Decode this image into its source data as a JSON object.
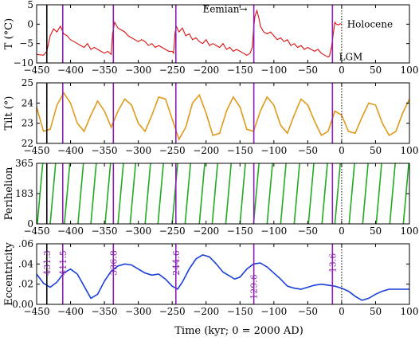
{
  "chart_data": {
    "type": "line",
    "xlabel": "Time (kyr; 0 = 2000 AD)",
    "xlim": [
      -450,
      100
    ],
    "xticks": [
      -450,
      -400,
      -350,
      -300,
      -250,
      -200,
      -150,
      -100,
      -50,
      0,
      50,
      100
    ],
    "black_line_x": -435,
    "dotted_line_x": 0,
    "purple_lines_x": [
      -411.5,
      -336.8,
      -244.6,
      -129.6,
      -13.6
    ],
    "purple_labels": [
      "431.3",
      "411.5",
      "336.8",
      "244.6",
      "129.6",
      "13.6"
    ],
    "colors": {
      "temperature": "#dd1111",
      "tilt": "#e09a1b",
      "perihelion": "#22aa22",
      "eccentricity": "#1a3fd6",
      "purple": "#8a1fb0"
    },
    "panels": [
      {
        "name": "temperature",
        "ylabel": "T (°C)",
        "ylim": [
          -10,
          5
        ],
        "yticks": [
          "5",
          "0",
          "-5",
          "-10"
        ],
        "annotations": [
          "Eemian→",
          "Holocene",
          "LGM"
        ],
        "points": [
          [
            -450,
            -7.8
          ],
          [
            -440,
            -8.0
          ],
          [
            -435,
            -7.0
          ],
          [
            -430,
            -3.0
          ],
          [
            -425,
            -1.2
          ],
          [
            -420,
            -2.0
          ],
          [
            -415,
            -0.5
          ],
          [
            -410,
            -2.5
          ],
          [
            -405,
            -3.0
          ],
          [
            -400,
            -4.0
          ],
          [
            -395,
            -4.5
          ],
          [
            -390,
            -5.0
          ],
          [
            -385,
            -5.5
          ],
          [
            -380,
            -6.0
          ],
          [
            -375,
            -5.0
          ],
          [
            -370,
            -6.5
          ],
          [
            -365,
            -6.0
          ],
          [
            -360,
            -6.5
          ],
          [
            -355,
            -7.0
          ],
          [
            -350,
            -7.5
          ],
          [
            -345,
            -7.0
          ],
          [
            -340,
            -7.8
          ],
          [
            -338,
            -2.5
          ],
          [
            -335,
            0.5
          ],
          [
            -330,
            -1.0
          ],
          [
            -325,
            -1.5
          ],
          [
            -320,
            -2.0
          ],
          [
            -315,
            -3.0
          ],
          [
            -310,
            -3.5
          ],
          [
            -305,
            -4.0
          ],
          [
            -300,
            -4.5
          ],
          [
            -295,
            -4.0
          ],
          [
            -290,
            -4.5
          ],
          [
            -285,
            -5.5
          ],
          [
            -280,
            -5.0
          ],
          [
            -275,
            -6.0
          ],
          [
            -270,
            -5.5
          ],
          [
            -265,
            -6.0
          ],
          [
            -260,
            -6.5
          ],
          [
            -255,
            -7.0
          ],
          [
            -250,
            -7.0
          ],
          [
            -248,
            -7.5
          ],
          [
            -246,
            -2.5
          ],
          [
            -244,
            -0.5
          ],
          [
            -240,
            -2.0
          ],
          [
            -235,
            -1.0
          ],
          [
            -230,
            -3.0
          ],
          [
            -225,
            -2.5
          ],
          [
            -220,
            -4.0
          ],
          [
            -215,
            -3.5
          ],
          [
            -210,
            -4.5
          ],
          [
            -205,
            -5.0
          ],
          [
            -200,
            -4.0
          ],
          [
            -195,
            -5.5
          ],
          [
            -190,
            -5.0
          ],
          [
            -185,
            -5.5
          ],
          [
            -180,
            -6.0
          ],
          [
            -175,
            -5.0
          ],
          [
            -170,
            -6.5
          ],
          [
            -165,
            -6.0
          ],
          [
            -160,
            -7.0
          ],
          [
            -155,
            -6.5
          ],
          [
            -150,
            -7.0
          ],
          [
            -145,
            -7.5
          ],
          [
            -140,
            -8.0
          ],
          [
            -135,
            -7.5
          ],
          [
            -132,
            -6.0
          ],
          [
            -130,
            -1.5
          ],
          [
            -128,
            2.0
          ],
          [
            -125,
            3.5
          ],
          [
            -122,
            1.5
          ],
          [
            -120,
            -0.5
          ],
          [
            -115,
            -2.0
          ],
          [
            -110,
            -2.5
          ],
          [
            -105,
            -2.0
          ],
          [
            -100,
            -3.0
          ],
          [
            -95,
            -4.0
          ],
          [
            -90,
            -3.5
          ],
          [
            -85,
            -4.5
          ],
          [
            -80,
            -4.0
          ],
          [
            -75,
            -5.5
          ],
          [
            -70,
            -5.0
          ],
          [
            -65,
            -6.0
          ],
          [
            -60,
            -5.5
          ],
          [
            -55,
            -6.5
          ],
          [
            -50,
            -6.0
          ],
          [
            -45,
            -6.5
          ],
          [
            -40,
            -7.0
          ],
          [
            -35,
            -6.5
          ],
          [
            -30,
            -7.5
          ],
          [
            -25,
            -8.0
          ],
          [
            -20,
            -8.5
          ],
          [
            -18,
            -8.2
          ],
          [
            -15,
            -6.0
          ],
          [
            -12,
            -2.0
          ],
          [
            -10,
            0.5
          ],
          [
            -8,
            0.0
          ],
          [
            -5,
            -0.2
          ],
          [
            -2,
            0.1
          ],
          [
            0,
            0.0
          ]
        ]
      },
      {
        "name": "tilt",
        "ylabel": "Tilt (°)",
        "ylim": [
          22,
          25
        ],
        "yticks": [
          "25",
          "24",
          "23",
          "22"
        ],
        "points": [
          [
            -450,
            23.8
          ],
          [
            -440,
            22.6
          ],
          [
            -430,
            22.7
          ],
          [
            -420,
            23.9
          ],
          [
            -410,
            24.5
          ],
          [
            -400,
            24.0
          ],
          [
            -390,
            23.0
          ],
          [
            -380,
            22.6
          ],
          [
            -370,
            23.4
          ],
          [
            -360,
            24.1
          ],
          [
            -350,
            23.6
          ],
          [
            -340,
            22.8
          ],
          [
            -330,
            23.6
          ],
          [
            -320,
            24.2
          ],
          [
            -310,
            23.9
          ],
          [
            -300,
            23.0
          ],
          [
            -290,
            22.6
          ],
          [
            -280,
            23.4
          ],
          [
            -270,
            24.3
          ],
          [
            -260,
            24.2
          ],
          [
            -250,
            23.2
          ],
          [
            -240,
            22.2
          ],
          [
            -230,
            22.8
          ],
          [
            -220,
            24.0
          ],
          [
            -210,
            24.4
          ],
          [
            -200,
            23.5
          ],
          [
            -190,
            22.4
          ],
          [
            -180,
            22.5
          ],
          [
            -170,
            23.6
          ],
          [
            -160,
            24.3
          ],
          [
            -150,
            23.8
          ],
          [
            -140,
            22.7
          ],
          [
            -130,
            22.6
          ],
          [
            -120,
            23.6
          ],
          [
            -110,
            24.3
          ],
          [
            -100,
            23.9
          ],
          [
            -90,
            22.9
          ],
          [
            -80,
            22.5
          ],
          [
            -70,
            23.4
          ],
          [
            -60,
            24.2
          ],
          [
            -50,
            23.9
          ],
          [
            -40,
            23.1
          ],
          [
            -30,
            22.4
          ],
          [
            -20,
            22.6
          ],
          [
            -10,
            23.6
          ],
          [
            0,
            23.4
          ],
          [
            10,
            22.6
          ],
          [
            20,
            22.5
          ],
          [
            30,
            23.3
          ],
          [
            40,
            24.0
          ],
          [
            50,
            23.9
          ],
          [
            60,
            23.0
          ],
          [
            70,
            22.4
          ],
          [
            80,
            22.6
          ],
          [
            90,
            23.5
          ],
          [
            100,
            24.2
          ]
        ]
      },
      {
        "name": "perihelion",
        "ylabel": "Perihelion",
        "ylim": [
          0,
          365
        ],
        "yticks": [
          "365",
          "183",
          "0"
        ],
        "cycle_starts": [
          -449,
          -430,
          -409,
          -389,
          -370,
          -349,
          -330,
          -312,
          -290,
          -271,
          -250,
          -231,
          -210,
          -191,
          -171,
          -150,
          -130,
          -110,
          -90,
          -70,
          -49,
          -29,
          -10,
          11,
          31,
          51,
          71,
          91
        ],
        "cycle_width": 8
      },
      {
        "name": "eccentricity",
        "ylabel": "Eccentricity",
        "ylim": [
          0,
          0.06
        ],
        "yticks": [
          ".06",
          ".04",
          ".02",
          "0.00"
        ],
        "points": [
          [
            -450,
            0.03
          ],
          [
            -440,
            0.021
          ],
          [
            -430,
            0.017
          ],
          [
            -420,
            0.022
          ],
          [
            -410,
            0.031
          ],
          [
            -400,
            0.035
          ],
          [
            -390,
            0.03
          ],
          [
            -380,
            0.018
          ],
          [
            -370,
            0.006
          ],
          [
            -360,
            0.01
          ],
          [
            -350,
            0.023
          ],
          [
            -340,
            0.033
          ],
          [
            -330,
            0.038
          ],
          [
            -320,
            0.04
          ],
          [
            -310,
            0.039
          ],
          [
            -300,
            0.035
          ],
          [
            -290,
            0.031
          ],
          [
            -280,
            0.029
          ],
          [
            -270,
            0.03
          ],
          [
            -260,
            0.025
          ],
          [
            -250,
            0.018
          ],
          [
            -242,
            0.015
          ],
          [
            -235,
            0.022
          ],
          [
            -225,
            0.035
          ],
          [
            -215,
            0.045
          ],
          [
            -205,
            0.049
          ],
          [
            -195,
            0.047
          ],
          [
            -185,
            0.04
          ],
          [
            -175,
            0.032
          ],
          [
            -165,
            0.028
          ],
          [
            -158,
            0.025
          ],
          [
            -150,
            0.027
          ],
          [
            -140,
            0.035
          ],
          [
            -130,
            0.04
          ],
          [
            -120,
            0.041
          ],
          [
            -110,
            0.037
          ],
          [
            -100,
            0.031
          ],
          [
            -90,
            0.025
          ],
          [
            -80,
            0.018
          ],
          [
            -70,
            0.016
          ],
          [
            -60,
            0.015
          ],
          [
            -50,
            0.017
          ],
          [
            -40,
            0.019
          ],
          [
            -30,
            0.02
          ],
          [
            -20,
            0.019
          ],
          [
            -10,
            0.018
          ],
          [
            0,
            0.016
          ],
          [
            10,
            0.013
          ],
          [
            20,
            0.008
          ],
          [
            30,
            0.004
          ],
          [
            40,
            0.006
          ],
          [
            50,
            0.01
          ],
          [
            60,
            0.013
          ],
          [
            70,
            0.015
          ],
          [
            80,
            0.015
          ],
          [
            90,
            0.015
          ],
          [
            100,
            0.015
          ]
        ]
      }
    ]
  }
}
